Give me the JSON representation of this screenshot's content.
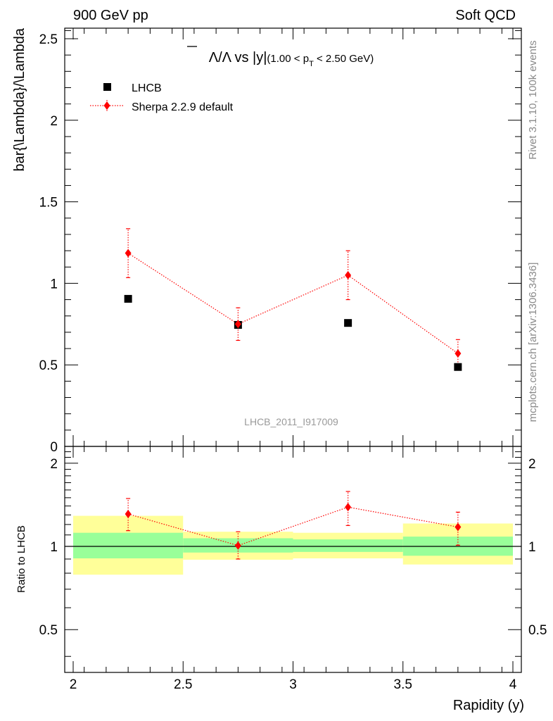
{
  "header": {
    "left": "900 GeV pp",
    "right": "Soft QCD"
  },
  "side_labels": {
    "rivet": "Rivet 3.1.10,  100k events",
    "mcplots": "mcplots.cern.ch [arXiv:1306.3436]"
  },
  "watermark": "LHCB_2011_I917009",
  "chart_data": [
    {
      "type": "scatter",
      "panel": "main",
      "title_parts": {
        "ratio": "Λ/Λ vs |y|",
        "range": "(1.00 < p",
        "sub": "T",
        "range_end": " < 2.50 GeV)"
      },
      "ylabel": "bar{\\Lambda}/\\Lambda",
      "xlim": [
        2,
        4
      ],
      "ylim": [
        0,
        2.6
      ],
      "yticks": [
        0,
        0.5,
        1,
        1.5,
        2,
        2.5
      ],
      "ytick_labels": [
        "0",
        "0.5",
        "1",
        "1.5",
        "2",
        "2.5"
      ],
      "legend_placement": "top-left",
      "series": [
        {
          "name": "LHCB",
          "color": "#000000",
          "marker": "square",
          "bins": [
            [
              2.0,
              2.5
            ],
            [
              2.5,
              3.0
            ],
            [
              3.0,
              3.5
            ],
            [
              3.5,
              4.0
            ]
          ],
          "x": [
            2.25,
            2.75,
            3.25,
            3.75
          ],
          "y": [
            0.905,
            0.745,
            0.757,
            0.487
          ],
          "yerr": [
            0.01,
            0.01,
            0.01,
            0.01
          ]
        },
        {
          "name": "Sherpa 2.2.9 default",
          "color": "#ff0000",
          "marker": "diamond",
          "line": "dotted",
          "x": [
            2.25,
            2.75,
            3.25,
            3.75
          ],
          "y": [
            1.185,
            0.75,
            1.05,
            0.57
          ],
          "yerr": [
            0.15,
            0.1,
            0.15,
            0.085
          ]
        }
      ]
    },
    {
      "type": "scatter",
      "panel": "ratio",
      "ylabel": "Ratio to LHCB",
      "xlabel": "Rapidity (y)",
      "xlim": [
        2,
        4
      ],
      "xticks": [
        2,
        2.5,
        3,
        3.5,
        4
      ],
      "xtick_labels": [
        "2",
        "2.5",
        "3",
        "3.5",
        "4"
      ],
      "ylim": [
        0.35,
        2.3
      ],
      "yscale": "log",
      "yticks": [
        0.5,
        1,
        2
      ],
      "ytick_labels": [
        "0.5",
        "1",
        "2"
      ],
      "reference_line": 1,
      "bands": {
        "bins": [
          [
            2.0,
            2.5
          ],
          [
            2.5,
            3.0
          ],
          [
            3.0,
            3.5
          ],
          [
            3.5,
            4.0
          ]
        ],
        "stat_color": "#99ff99",
        "stat_lo": [
          0.905,
          0.95,
          0.955,
          0.925
        ],
        "stat_hi": [
          1.12,
          1.07,
          1.06,
          1.085
        ],
        "total_color": "#ffff99",
        "total_lo": [
          0.79,
          0.895,
          0.905,
          0.86
        ],
        "total_hi": [
          1.29,
          1.13,
          1.12,
          1.21
        ]
      },
      "series": [
        {
          "name": "Sherpa 2.2.9 default",
          "color": "#ff0000",
          "marker": "diamond",
          "line": "dotted",
          "x": [
            2.25,
            2.75,
            3.25,
            3.75
          ],
          "y": [
            1.31,
            1.007,
            1.387,
            1.175
          ],
          "ylo": [
            1.14,
            0.9,
            1.19,
            1.01
          ],
          "yhi": [
            1.49,
            1.13,
            1.58,
            1.33
          ]
        }
      ]
    }
  ]
}
